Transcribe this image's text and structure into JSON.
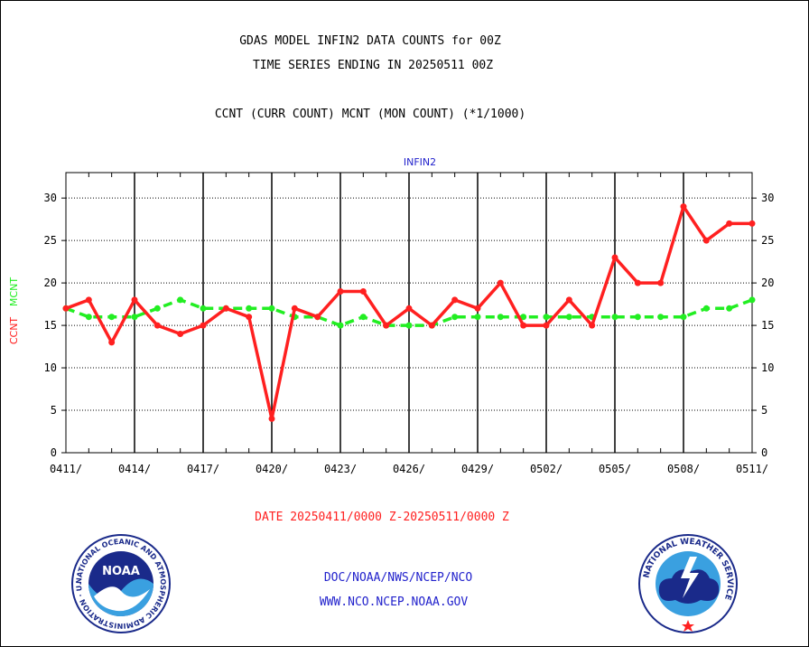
{
  "titles": {
    "line1": "GDAS MODEL INFIN2 DATA COUNTS for 00Z",
    "line2": "TIME SERIES ENDING IN 20250511 00Z",
    "line3": "CCNT (CURR COUNT) MCNT (MON COUNT) (*1/1000)"
  },
  "footer": {
    "date_range": "DATE 20250411/0000 Z-20250511/0000 Z",
    "org_path": "DOC/NOAA/NWS/NCEP/NCO",
    "website": "WWW.NCO.NCEP.NOAA.GOV"
  },
  "logos": {
    "noaa": {
      "center_text": "NOAA",
      "ring_text": "NATIONAL OCEANIC AND ATMOSPHERIC ADMINISTRATION · U.S. DEPARTMENT OF COMMERCE"
    },
    "nws": {
      "ring_text": "NATIONAL WEATHER SERVICE"
    }
  },
  "colors": {
    "ccnt": "#ff2020",
    "mcnt": "#22ee22",
    "label_blue": "#2222cc",
    "date_red": "#ff2020"
  },
  "chart_data": {
    "type": "line",
    "title": "INFIN2",
    "ylabel_ccnt": "CCNT",
    "ylabel_mcnt": "MCNT",
    "ylim": [
      0,
      33
    ],
    "yticks": [
      0,
      5,
      10,
      15,
      20,
      25,
      30
    ],
    "xtick_labels": [
      "0411/",
      "0414/",
      "0417/",
      "0420/",
      "0423/",
      "0426/",
      "0429/",
      "0502/",
      "0505/",
      "0508/",
      "0511/"
    ],
    "grid": true,
    "x_start_date": "2025-04-11",
    "series": [
      {
        "name": "CCNT",
        "style": "solid",
        "values": [
          17,
          18,
          13,
          18,
          15,
          14,
          15,
          17,
          16,
          4,
          17,
          16,
          19,
          19,
          15,
          17,
          15,
          18,
          17,
          20,
          15,
          15,
          18,
          15,
          23,
          20,
          20,
          29,
          25,
          27,
          27
        ]
      },
      {
        "name": "MCNT",
        "style": "dashed",
        "values": [
          17,
          16,
          16,
          16,
          17,
          18,
          17,
          17,
          17,
          17,
          16,
          16,
          15,
          16,
          15,
          15,
          15,
          16,
          16,
          16,
          16,
          16,
          16,
          16,
          16,
          16,
          16,
          16,
          17,
          17,
          18
        ]
      }
    ]
  }
}
